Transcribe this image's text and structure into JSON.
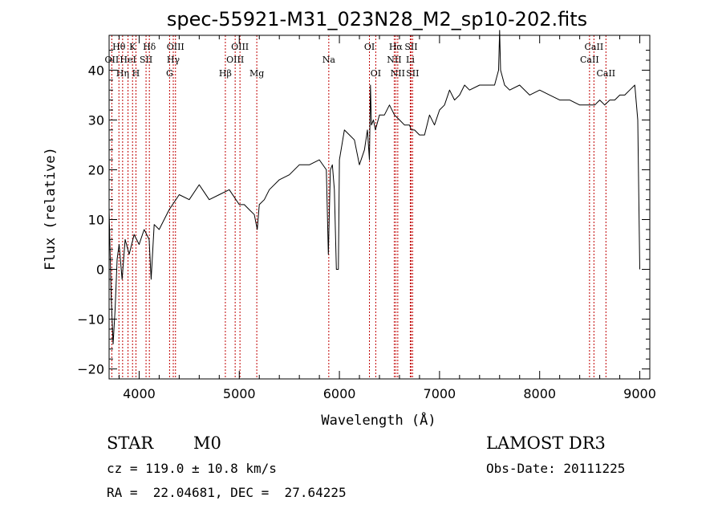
{
  "chart_data": {
    "type": "line",
    "title": "spec-55921-M31_023N28_M2_sp10-202.fits",
    "xlabel": "Wavelength (Å)",
    "ylabel": "Flux (relative)",
    "xlim": [
      3700,
      9100
    ],
    "ylim": [
      -22,
      47
    ],
    "xticks": [
      4000,
      5000,
      6000,
      7000,
      8000,
      9000
    ],
    "yticks": [
      -20,
      -10,
      0,
      10,
      20,
      30,
      40
    ],
    "grid": false,
    "series": [
      {
        "name": "spectrum",
        "x": [
          3700,
          3720,
          3740,
          3760,
          3780,
          3800,
          3830,
          3860,
          3900,
          3950,
          4000,
          4050,
          4100,
          4120,
          4150,
          4200,
          4300,
          4400,
          4500,
          4600,
          4700,
          4800,
          4900,
          5000,
          5050,
          5100,
          5150,
          5180,
          5200,
          5250,
          5300,
          5400,
          5500,
          5600,
          5700,
          5800,
          5870,
          5890,
          5910,
          5930,
          5950,
          5970,
          5990,
          6000,
          6050,
          6100,
          6150,
          6200,
          6250,
          6280,
          6300,
          6310,
          6320,
          6340,
          6360,
          6400,
          6450,
          6500,
          6550,
          6600,
          6650,
          6700,
          6720,
          6750,
          6800,
          6850,
          6900,
          6950,
          7000,
          7050,
          7100,
          7150,
          7200,
          7250,
          7300,
          7400,
          7500,
          7550,
          7590,
          7600,
          7610,
          7650,
          7700,
          7800,
          7900,
          8000,
          8100,
          8200,
          8300,
          8400,
          8500,
          8550,
          8600,
          8650,
          8700,
          8750,
          8800,
          8850,
          8900,
          8950,
          8980,
          9000
        ],
        "y": [
          12,
          -5,
          -15,
          -8,
          2,
          5,
          -2,
          6,
          3,
          7,
          5,
          8,
          6,
          -2,
          9,
          8,
          12,
          15,
          14,
          17,
          14,
          15,
          16,
          13,
          13,
          12,
          11,
          8,
          13,
          14,
          16,
          18,
          19,
          21,
          21,
          22,
          20,
          3,
          20,
          21,
          16,
          0,
          0,
          22,
          28,
          27,
          26,
          21,
          24,
          28,
          22,
          37,
          29,
          30,
          28,
          31,
          31,
          33,
          31,
          30,
          29,
          29,
          28,
          28,
          27,
          27,
          31,
          29,
          32,
          33,
          36,
          34,
          35,
          37,
          36,
          37,
          37,
          37,
          40,
          48,
          40,
          37,
          36,
          37,
          35,
          36,
          35,
          34,
          34,
          33,
          33,
          33,
          34,
          33,
          34,
          34,
          35,
          35,
          36,
          37,
          30,
          0
        ]
      }
    ],
    "line_markers": [
      {
        "name": "Hθ",
        "wavelength": 3798,
        "label_row": 1
      },
      {
        "name": "OII",
        "wavelength": 3727,
        "label_row": 2
      },
      {
        "name": "Hη",
        "wavelength": 3835,
        "label_row": 3
      },
      {
        "name": "HeI",
        "wavelength": 3889,
        "label_row": 2
      },
      {
        "name": "K",
        "wavelength": 3934,
        "label_row": 1
      },
      {
        "name": "H",
        "wavelength": 3968,
        "label_row": 3
      },
      {
        "name": "SII",
        "wavelength": 4069,
        "label_row": 2
      },
      {
        "name": "Hδ",
        "wavelength": 4102,
        "label_row": 1
      },
      {
        "name": "G",
        "wavelength": 4304,
        "label_row": 3
      },
      {
        "name": "Hγ",
        "wavelength": 4341,
        "label_row": 2
      },
      {
        "name": "OIII",
        "wavelength": 4363,
        "label_row": 1
      },
      {
        "name": "Hβ",
        "wavelength": 4861,
        "label_row": 3
      },
      {
        "name": "OIII",
        "wavelength": 4959,
        "label_row": 2
      },
      {
        "name": "OIII",
        "wavelength": 5007,
        "label_row": 1
      },
      {
        "name": "Mg",
        "wavelength": 5175,
        "label_row": 3
      },
      {
        "name": "Na",
        "wavelength": 5894,
        "label_row": 2
      },
      {
        "name": "OI",
        "wavelength": 6300,
        "label_row": 1
      },
      {
        "name": "OI",
        "wavelength": 6363,
        "label_row": 3
      },
      {
        "name": "NII",
        "wavelength": 6548,
        "label_row": 2
      },
      {
        "name": "Hα",
        "wavelength": 6563,
        "label_row": 1
      },
      {
        "name": "NII",
        "wavelength": 6583,
        "label_row": 3
      },
      {
        "name": "SII",
        "wavelength": 6716,
        "label_row": 1
      },
      {
        "name": "Li",
        "wavelength": 6708,
        "label_row": 2
      },
      {
        "name": "SII",
        "wavelength": 6731,
        "label_row": 3
      },
      {
        "name": "CaII",
        "wavelength": 8498,
        "label_row": 2
      },
      {
        "name": "CaII",
        "wavelength": 8542,
        "label_row": 1
      },
      {
        "name": "CaII",
        "wavelength": 8662,
        "label_row": 3
      }
    ],
    "colors": {
      "spectrum": "#000000",
      "markers": "#c00000",
      "axes": "#000000",
      "background": "#ffffff"
    }
  },
  "info": {
    "class": "STAR",
    "subclass": "M0",
    "survey": "LAMOST DR3",
    "cz": "cz = 119.0 ± 10.8 km/s",
    "obs_date": "Obs-Date: 20111225",
    "coords": "RA =  22.04681, DEC =  27.64225"
  }
}
